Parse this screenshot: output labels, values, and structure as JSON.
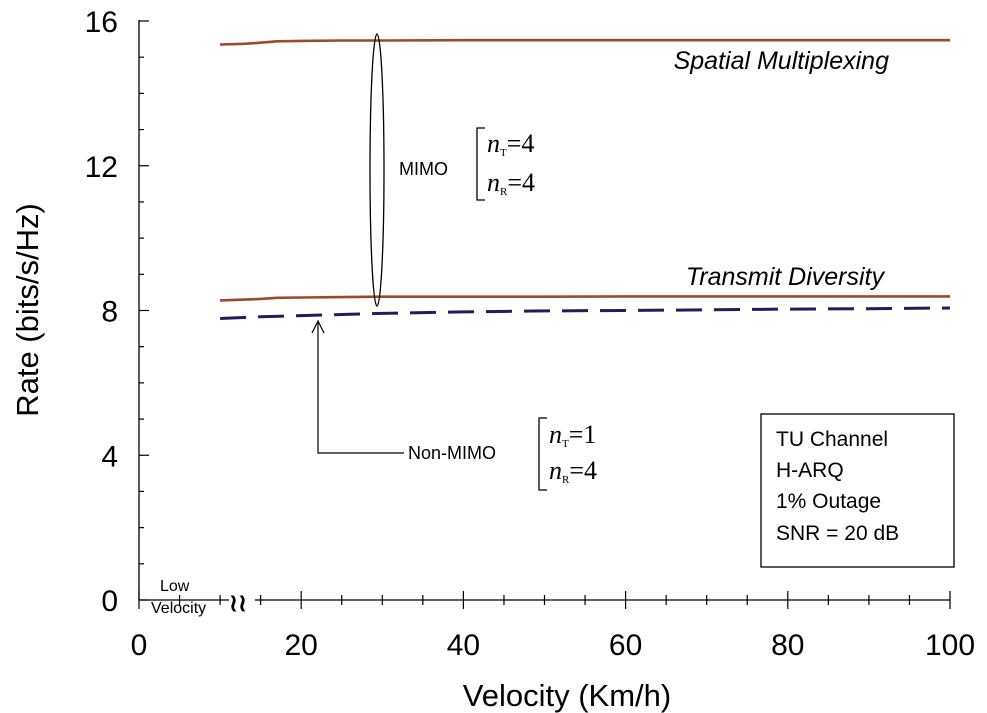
{
  "chart_data": {
    "type": "line",
    "xlabel": "Velocity (Km/h)",
    "ylabel": "Rate (bits/s/Hz)",
    "xlim": [
      0,
      100
    ],
    "ylim": [
      0,
      16
    ],
    "x_ticks": [
      0,
      20,
      40,
      60,
      80,
      100
    ],
    "x_tick_labels": [
      "0",
      "20",
      "40",
      "60",
      "80",
      "100"
    ],
    "y_ticks": [
      0,
      4,
      8,
      12,
      16
    ],
    "y_tick_labels": [
      "0",
      "4",
      "8",
      "12",
      "16"
    ],
    "grid": false,
    "series": [
      {
        "name": "Spatial Multiplexing",
        "color": "#9c4a2e",
        "style": "solid",
        "x": [
          10,
          13,
          15,
          17,
          20,
          25,
          30,
          40,
          50,
          60,
          70,
          80,
          90,
          100
        ],
        "y": [
          15.35,
          15.37,
          15.4,
          15.44,
          15.45,
          15.46,
          15.46,
          15.47,
          15.47,
          15.47,
          15.47,
          15.47,
          15.47,
          15.47
        ]
      },
      {
        "name": "Transmit Diversity",
        "color": "#9c4a2e",
        "style": "solid",
        "x": [
          10,
          13,
          15,
          17,
          20,
          25,
          30,
          40,
          50,
          60,
          70,
          80,
          90,
          100
        ],
        "y": [
          8.28,
          8.3,
          8.32,
          8.35,
          8.36,
          8.37,
          8.38,
          8.38,
          8.38,
          8.39,
          8.39,
          8.39,
          8.39,
          8.39
        ]
      },
      {
        "name": "Non-MIMO",
        "color": "#1f1f5e",
        "style": "dashed",
        "x": [
          10,
          15,
          20,
          25,
          30,
          40,
          50,
          60,
          70,
          80,
          90,
          100
        ],
        "y": [
          7.78,
          7.83,
          7.86,
          7.89,
          7.92,
          7.96,
          7.99,
          8.0,
          8.02,
          8.04,
          8.05,
          8.07
        ]
      }
    ],
    "annotations": {
      "spatial_label": "Spatial Multiplexing",
      "transmit_label": "Transmit Diversity",
      "mimo_label": "MIMO",
      "mimo_nt_var": "n",
      "mimo_nt_sub": "T",
      "mimo_nt_val": "=4",
      "mimo_nr_var": "n",
      "mimo_nr_sub": "R",
      "mimo_nr_val": "=4",
      "nonmimo_label": "Non-MIMO",
      "nonmimo_nt_var": "n",
      "nonmimo_nt_sub": "T",
      "nonmimo_nt_val": "=1",
      "nonmimo_nr_var": "n",
      "nonmimo_nr_sub": "R",
      "nonmimo_nr_val": "=4",
      "low_velocity_line1": "Low",
      "low_velocity_line2": "Velocity",
      "axis_break": "≀≀"
    },
    "info_box": [
      "TU Channel",
      "H-ARQ",
      "1% Outage",
      "SNR = 20 dB"
    ]
  }
}
